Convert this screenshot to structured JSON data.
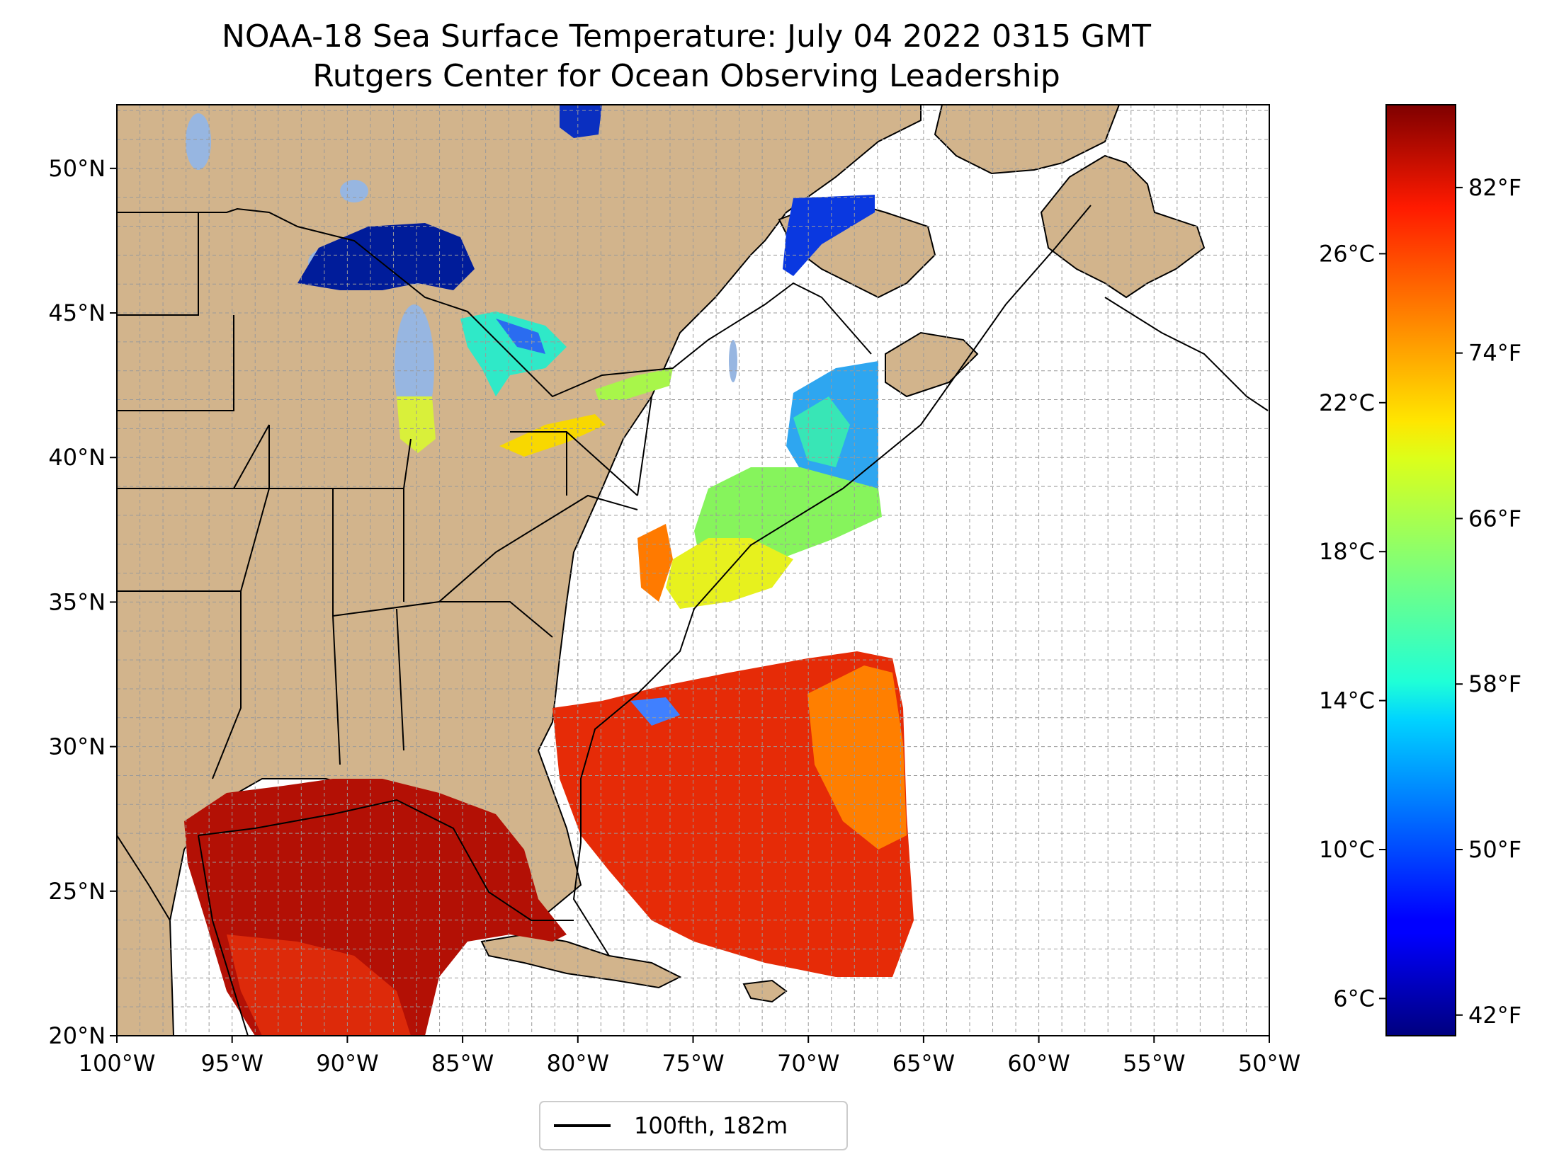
{
  "title_line1": "NOAA-18 Sea Surface Temperature: July 04 2022 0315 GMT",
  "title_line2": "Rutgers Center for Ocean Observing Leadership",
  "map": {
    "lon_range": [
      -100,
      -50
    ],
    "lat_range": [
      20,
      52.2
    ],
    "lon_ticks": [
      -100,
      -95,
      -90,
      -85,
      -80,
      -75,
      -70,
      -65,
      -60,
      -55,
      -50
    ],
    "lon_tick_labels": [
      "100°W",
      "95°W",
      "90°W",
      "85°W",
      "80°W",
      "75°W",
      "70°W",
      "65°W",
      "60°W",
      "55°W",
      "50°W"
    ],
    "lat_ticks": [
      20,
      25,
      30,
      35,
      40,
      45,
      50
    ],
    "lat_tick_labels": [
      "20°N",
      "25°N",
      "30°N",
      "35°N",
      "40°N",
      "45°N",
      "50°N"
    ],
    "grid": "dashed, 1° spacing",
    "land_color": "#d2b48c",
    "lake_color": "#97b6e1"
  },
  "colorbar": {
    "colormap": "jet",
    "celsius_range": [
      5.0,
      30.0
    ],
    "celsius_ticks": [
      6,
      10,
      14,
      18,
      22,
      26
    ],
    "celsius_labels": [
      "6°C",
      "10°C",
      "14°C",
      "18°C",
      "22°C",
      "26°C"
    ],
    "fahrenheit_ticks": [
      42,
      50,
      58,
      66,
      74,
      82
    ],
    "fahrenheit_labels": [
      "42°F",
      "50°F",
      "58°F",
      "66°F",
      "74°F",
      "82°F"
    ]
  },
  "legend": {
    "location": "bottom-center, below map",
    "label": "100fth, 182m",
    "line_color": "#000000"
  }
}
